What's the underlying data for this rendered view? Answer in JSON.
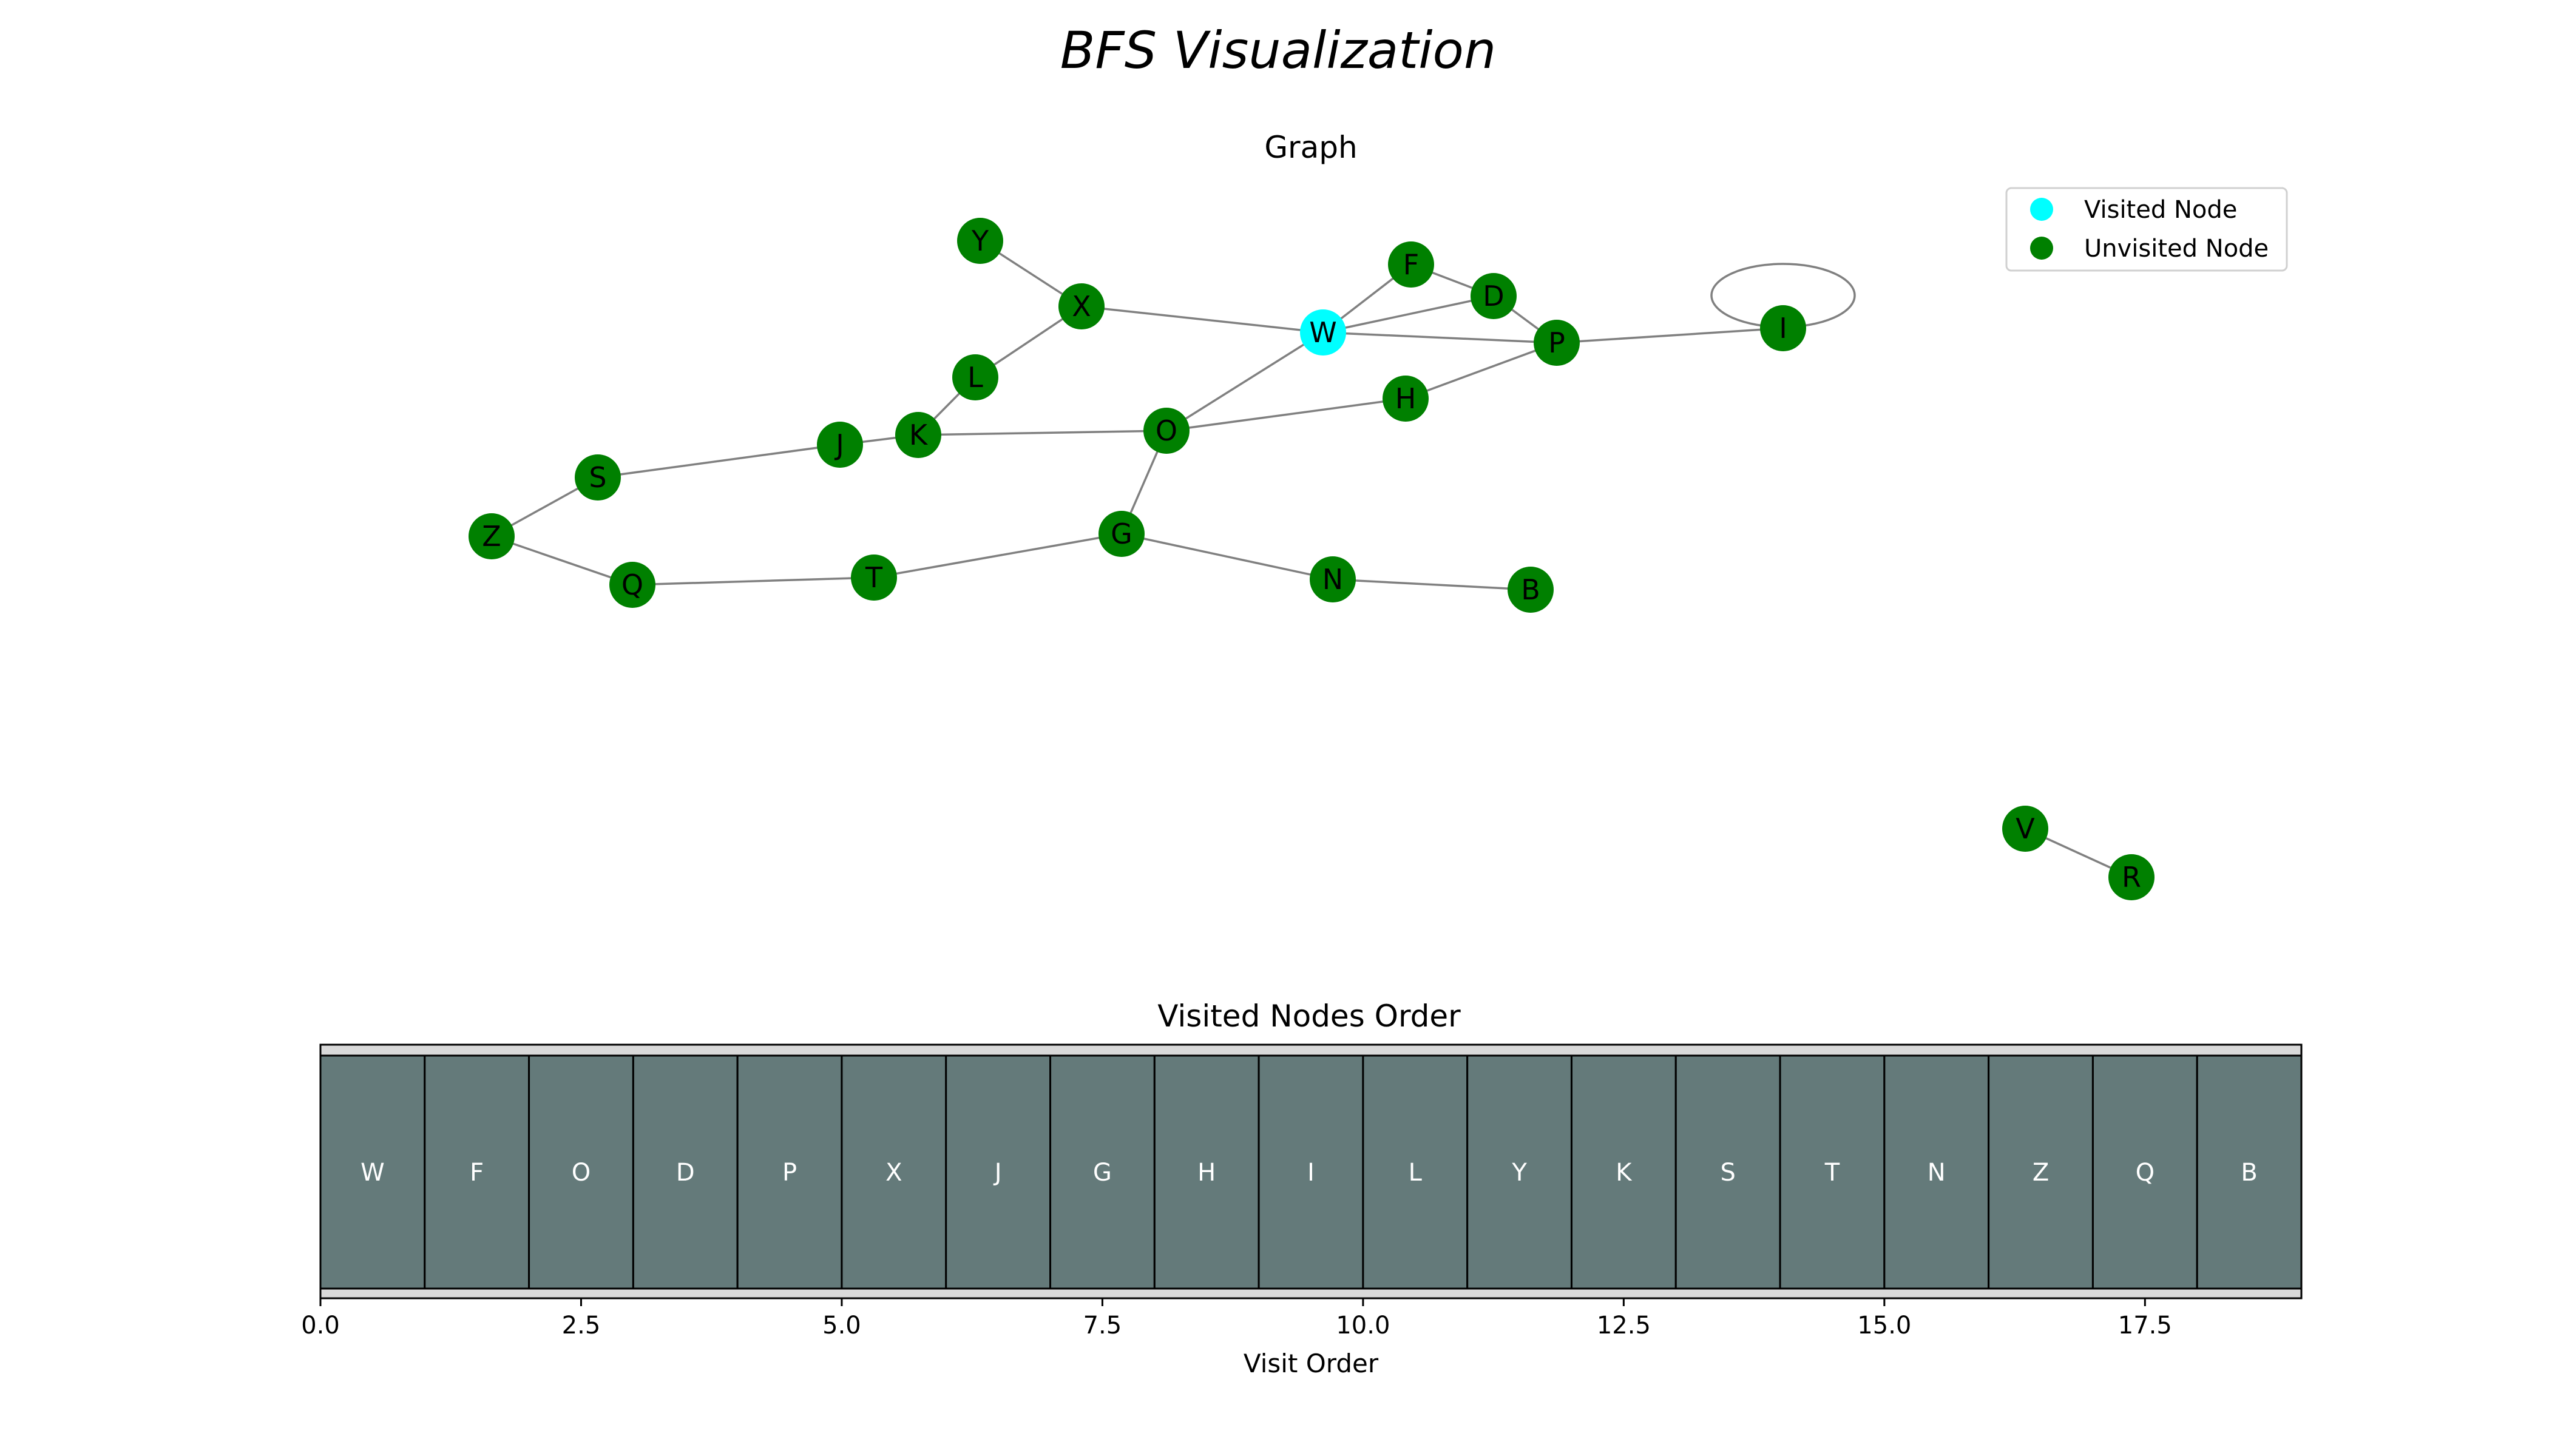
{
  "title": "BFS Visualization",
  "graph_panel": {
    "title": "Graph",
    "nodes": [
      {
        "id": "Y",
        "status": "unvisited"
      },
      {
        "id": "X",
        "status": "unvisited"
      },
      {
        "id": "W",
        "status": "visited"
      },
      {
        "id": "F",
        "status": "unvisited"
      },
      {
        "id": "D",
        "status": "unvisited"
      },
      {
        "id": "P",
        "status": "unvisited"
      },
      {
        "id": "I",
        "status": "unvisited"
      },
      {
        "id": "L",
        "status": "unvisited"
      },
      {
        "id": "H",
        "status": "unvisited"
      },
      {
        "id": "O",
        "status": "unvisited"
      },
      {
        "id": "J",
        "status": "unvisited"
      },
      {
        "id": "K",
        "status": "unvisited"
      },
      {
        "id": "S",
        "status": "unvisited"
      },
      {
        "id": "Z",
        "status": "unvisited"
      },
      {
        "id": "Q",
        "status": "unvisited"
      },
      {
        "id": "T",
        "status": "unvisited"
      },
      {
        "id": "G",
        "status": "unvisited"
      },
      {
        "id": "N",
        "status": "unvisited"
      },
      {
        "id": "B",
        "status": "unvisited"
      },
      {
        "id": "V",
        "status": "unvisited"
      },
      {
        "id": "R",
        "status": "unvisited"
      }
    ],
    "edges": [
      [
        "Y",
        "X"
      ],
      [
        "X",
        "W"
      ],
      [
        "X",
        "L"
      ],
      [
        "L",
        "K"
      ],
      [
        "W",
        "F"
      ],
      [
        "W",
        "D"
      ],
      [
        "W",
        "P"
      ],
      [
        "W",
        "O"
      ],
      [
        "F",
        "D"
      ],
      [
        "D",
        "P"
      ],
      [
        "P",
        "I"
      ],
      [
        "P",
        "H"
      ],
      [
        "I",
        "I"
      ],
      [
        "H",
        "O"
      ],
      [
        "O",
        "K"
      ],
      [
        "O",
        "G"
      ],
      [
        "K",
        "J"
      ],
      [
        "J",
        "S"
      ],
      [
        "S",
        "Z"
      ],
      [
        "Z",
        "Q"
      ],
      [
        "Q",
        "T"
      ],
      [
        "T",
        "G"
      ],
      [
        "G",
        "N"
      ],
      [
        "N",
        "B"
      ],
      [
        "V",
        "R"
      ]
    ],
    "legend": [
      {
        "label": "Visited Node",
        "color": "#00ffff"
      },
      {
        "label": "Unvisited Node",
        "color": "#008000"
      }
    ],
    "colors": {
      "visited": "#00ffff",
      "unvisited": "#008000",
      "edge": "#808080"
    }
  },
  "order_panel": {
    "title": "Visited Nodes Order",
    "sequence": [
      "W",
      "F",
      "O",
      "D",
      "P",
      "X",
      "J",
      "G",
      "H",
      "I",
      "L",
      "Y",
      "K",
      "S",
      "T",
      "N",
      "Z",
      "Q",
      "B"
    ],
    "x_ticks": [
      "0.0",
      "2.5",
      "5.0",
      "7.5",
      "10.0",
      "12.5",
      "15.0",
      "17.5"
    ],
    "x_label": "Visit Order",
    "xlim": [
      0,
      19
    ],
    "colors": {
      "cell": "#647a7a"
    }
  }
}
